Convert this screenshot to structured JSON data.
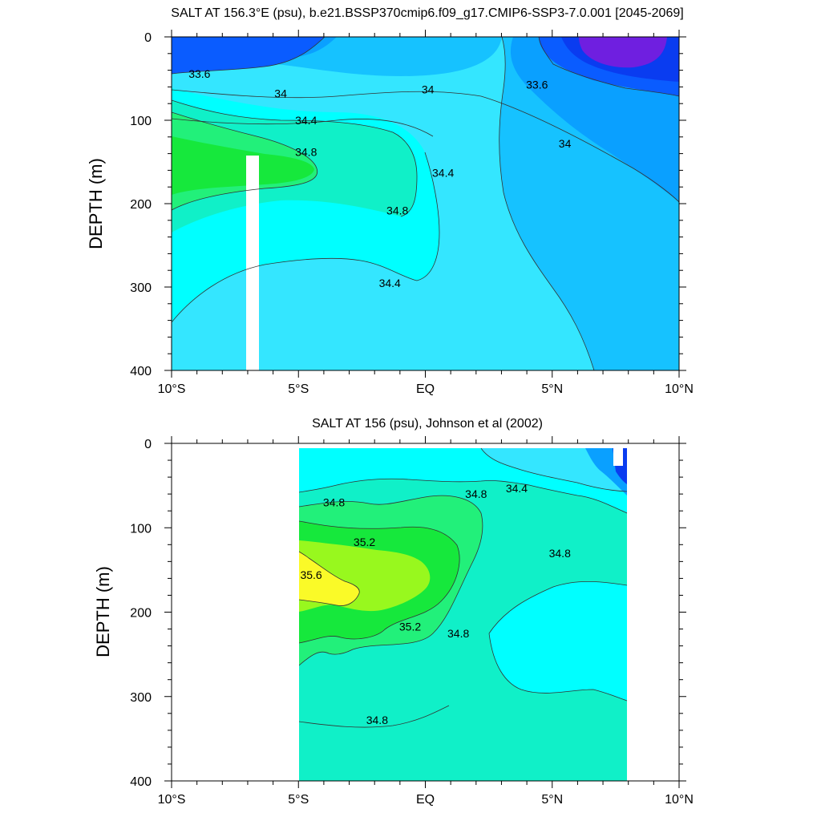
{
  "panels": [
    {
      "title": "SALT AT 156.3°E (psu), b.e21.BSSP370cmip6.f09_g17.CMIP6-SSP3-7.0.001 [2045-2069]",
      "ylabel": "DEPTH (m)",
      "x_ticks": [
        "10°S",
        "5°S",
        "EQ",
        "5°N",
        "10°N"
      ],
      "y_ticks": [
        "0",
        "100",
        "200",
        "300",
        "400"
      ]
    },
    {
      "title": "SALT AT 156 (psu), Johnson et al (2002)",
      "ylabel": "DEPTH (m)",
      "x_ticks": [
        "10°S",
        "5°S",
        "EQ",
        "5°N",
        "10°N"
      ],
      "y_ticks": [
        "0",
        "100",
        "200",
        "300",
        "400"
      ]
    }
  ],
  "colors": {
    "s33_2": "#6f1fe0",
    "s33_2_edge": "#2a1ae8",
    "s33_6": "#0a5cff",
    "s33_6_dark": "#0a3cf0",
    "s34_0": "#0aa0ff",
    "s34_2": "#16c2ff",
    "s34_4": "#34e6ff",
    "s34_6": "#00ffff",
    "s34_8": "#10f0c8",
    "s35_0": "#22f07a",
    "s35_2": "#16e83c",
    "s35_4": "#98f81e",
    "s35_6": "#fafa28"
  },
  "chart_data": [
    {
      "type": "contour",
      "title": "SALT AT 156.3°E (psu), b.e21.BSSP370cmip6.f09_g17.CMIP6-SSP3-7.0.001 [2045-2069]",
      "xlabel": "",
      "ylabel": "DEPTH (m)",
      "xlim": [
        -10,
        10
      ],
      "ylim": [
        400,
        0
      ],
      "x_ticks": [
        "10°S",
        "5°S",
        "EQ",
        "5°N",
        "10°N"
      ],
      "y_ticks": [
        0,
        100,
        200,
        300,
        400
      ],
      "contour_levels": [
        33.2,
        33.6,
        34.0,
        34.4,
        34.8
      ],
      "contour_labels": [
        {
          "text": "33.6",
          "lat": -8.9,
          "depth": 44
        },
        {
          "text": "34",
          "lat": -5.7,
          "depth": 68
        },
        {
          "text": "34",
          "lat": 0.1,
          "depth": 63
        },
        {
          "text": "33.6",
          "lat": 4.4,
          "depth": 57
        },
        {
          "text": "34.4",
          "lat": -4.7,
          "depth": 100
        },
        {
          "text": "34",
          "lat": 5.5,
          "depth": 128
        },
        {
          "text": "34.8",
          "lat": -4.7,
          "depth": 138
        },
        {
          "text": "34.4",
          "lat": 0.7,
          "depth": 163
        },
        {
          "text": "34.8",
          "lat": -1.1,
          "depth": 208
        },
        {
          "text": "34.4",
          "lat": -1.4,
          "depth": 295
        }
      ]
    },
    {
      "type": "contour",
      "title": "SALT AT 156 (psu), Johnson et al (2002)",
      "xlabel": "",
      "ylabel": "DEPTH (m)",
      "xlim": [
        -10,
        10
      ],
      "ylim": [
        400,
        0
      ],
      "x_ticks": [
        "10°S",
        "5°S",
        "EQ",
        "5°N",
        "10°N"
      ],
      "y_ticks": [
        0,
        100,
        200,
        300,
        400
      ],
      "data_extent_lat": [
        -5,
        8
      ],
      "contour_levels": [
        34.4,
        34.8,
        35.2,
        35.6
      ],
      "contour_labels": [
        {
          "text": "34.8",
          "lat": -3.6,
          "depth": 70
        },
        {
          "text": "34.8",
          "lat": 2.0,
          "depth": 60
        },
        {
          "text": "34.4",
          "lat": 3.6,
          "depth": 53
        },
        {
          "text": "35.2",
          "lat": -2.4,
          "depth": 117
        },
        {
          "text": "34.8",
          "lat": 5.3,
          "depth": 130
        },
        {
          "text": "35.6",
          "lat": -4.5,
          "depth": 156
        },
        {
          "text": "35.2",
          "lat": -0.6,
          "depth": 217
        },
        {
          "text": "34.8",
          "lat": 1.3,
          "depth": 225
        },
        {
          "text": "34.8",
          "lat": -1.9,
          "depth": 328
        }
      ]
    }
  ]
}
